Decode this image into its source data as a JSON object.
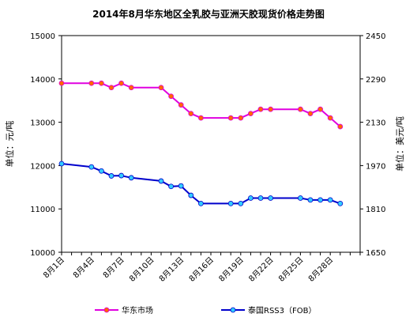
{
  "chart_data": {
    "type": "line",
    "title": "2014年8月华东地区全乳胶与亚洲天胶现货价格走势图",
    "ylabel_left": "单位：元/吨",
    "ylabel_right": "单位：美元/吨",
    "x_tick_labels": [
      "8月1日",
      "8月4日",
      "8月7日",
      "8月10日",
      "8月13日",
      "8月16日",
      "8月19日",
      "8月22日",
      "8月25日",
      "8月28日"
    ],
    "ylim_left": [
      10000,
      15000
    ],
    "yticks_left": [
      10000,
      11000,
      12000,
      13000,
      14000,
      15000
    ],
    "ylim_right": [
      1650,
      2450
    ],
    "yticks_right": [
      1650,
      1810,
      1970,
      2130,
      2290,
      2450
    ],
    "x_range": [
      1,
      31
    ],
    "grid": false,
    "legend_position": "bottom",
    "series": [
      {
        "name": "华东市场",
        "axis": "left",
        "color": "#e000e0",
        "marker_color": "#ff6600",
        "x": [
          1,
          4,
          5,
          6,
          7,
          8,
          11,
          12,
          13,
          14,
          15,
          18,
          19,
          20,
          21,
          22,
          25,
          26,
          27,
          28,
          29
        ],
        "values": [
          13900,
          13900,
          13900,
          13800,
          13900,
          13800,
          13800,
          13600,
          13400,
          13200,
          13100,
          13100,
          13100,
          13200,
          13300,
          13300,
          13300,
          13200,
          13300,
          13100,
          12900
        ]
      },
      {
        "name": "泰国RSS3（FOB）",
        "axis": "right",
        "color": "#0000cc",
        "marker_color": "#33ccff",
        "x": [
          1,
          4,
          5,
          6,
          7,
          8,
          11,
          12,
          13,
          14,
          15,
          18,
          19,
          20,
          21,
          22,
          25,
          26,
          27,
          28,
          29
        ],
        "values": [
          1977,
          1965,
          1950,
          1932,
          1933,
          1925,
          1913,
          1893,
          1895,
          1860,
          1830,
          1830,
          1830,
          1850,
          1850,
          1850,
          1850,
          1843,
          1843,
          1843,
          1830
        ]
      }
    ]
  }
}
